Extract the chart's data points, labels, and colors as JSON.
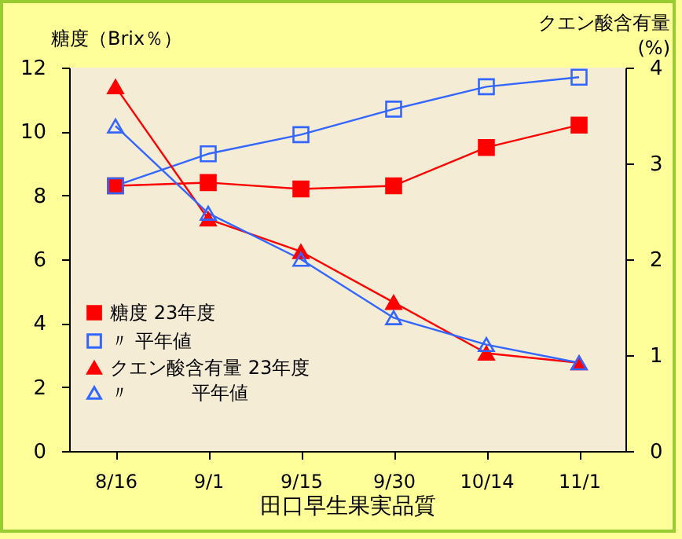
{
  "chart_data": {
    "type": "line",
    "xlabel": "田口早生果実品質",
    "ylabel": "糖度（Brix％）",
    "y2label": "クエン酸含有量\n(%)",
    "categories": [
      "8/16",
      "9/1",
      "9/15",
      "9/30",
      "10/14",
      "11/1"
    ],
    "series": [
      {
        "name": "糖度 23年度",
        "color": "#ff0000",
        "marker": "square",
        "values": [
          8.3,
          8.4,
          8.2,
          8.3,
          9.5,
          10.2
        ]
      },
      {
        "name": "〃 平年値",
        "color": "#3366ff",
        "marker": "square",
        "values": [
          8.3,
          9.3,
          9.9,
          10.7,
          11.4,
          11.7
        ]
      },
      {
        "name": "クエン酸含有量 23年度",
        "color": "#ff0000",
        "marker": "triangle",
        "axis": "y2",
        "values": [
          3.8,
          2.42,
          2.08,
          1.55,
          1.02,
          0.92
        ]
      },
      {
        "name": "〃　　　 平年値",
        "color": "#3366ff",
        "marker": "triangle",
        "axis": "y2",
        "values": [
          3.39,
          2.48,
          2.0,
          1.39,
          1.11,
          0.92
        ]
      }
    ],
    "ylim": [
      0,
      12
    ],
    "yticks": [
      0,
      2,
      4,
      6,
      8,
      10,
      12
    ],
    "y2lim": [
      0,
      4
    ],
    "y2ticks": [
      0,
      1,
      2,
      3,
      4
    ],
    "grid": false,
    "legend": "bottom left"
  }
}
